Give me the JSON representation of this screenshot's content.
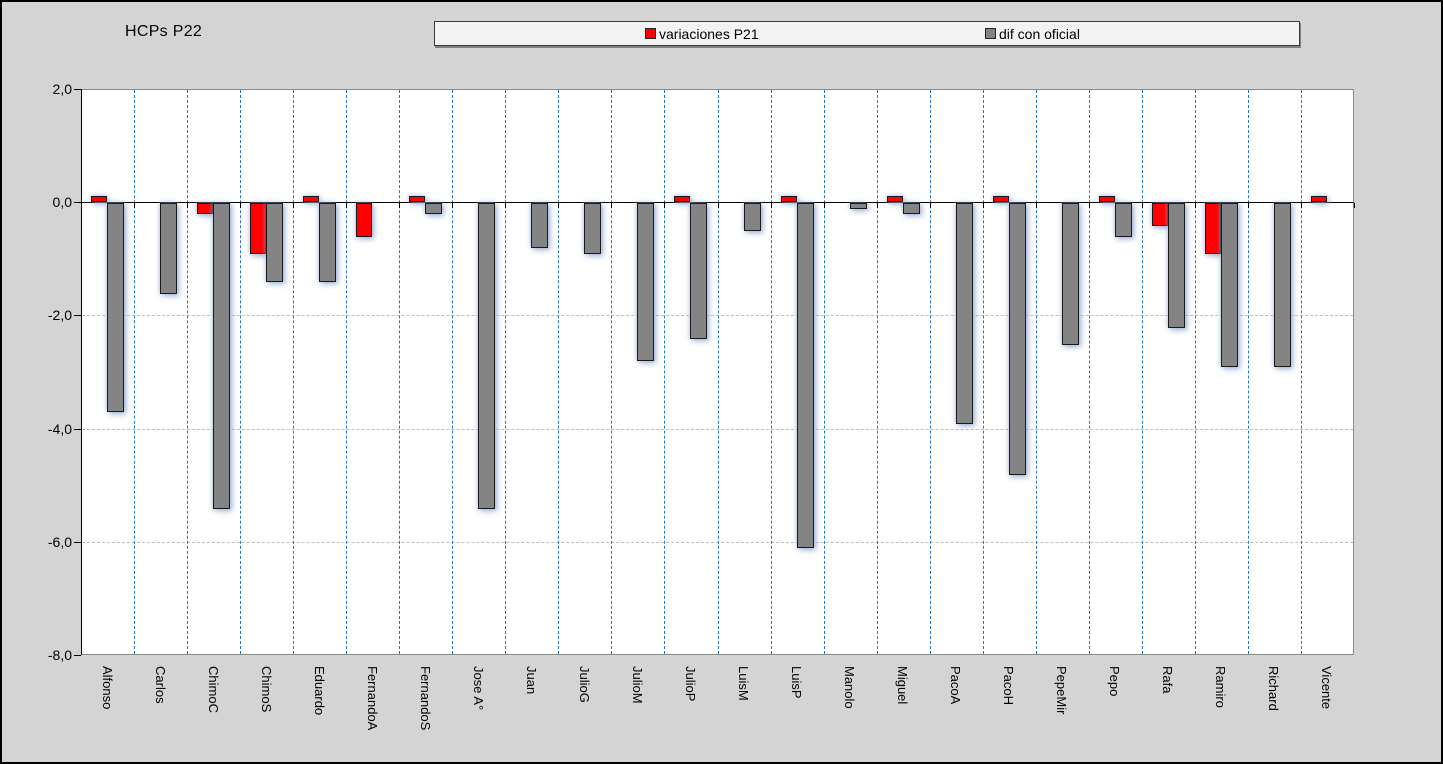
{
  "title": "HCPs P22",
  "legend": {
    "entries": [
      {
        "label": "variaciones P21",
        "color": "#fe0000"
      },
      {
        "label": "dif con oficial",
        "color": "#848484"
      }
    ],
    "position": "top-center",
    "background": "#f3f3f3"
  },
  "colors": {
    "page_background": "#d4d4d4",
    "plot_background": "#ffffff",
    "vertical_grid": "#2277c4",
    "horizontal_grid": "#bdbdbd",
    "axis": "#000000"
  },
  "chart_data": {
    "type": "bar",
    "title": "HCPs P22",
    "categories": [
      "Alfonso",
      "Carlos",
      "ChimoC",
      "ChimoS",
      "Eduardo",
      "FernandoA",
      "FernandoS",
      "Jose A°",
      "Juan",
      "JulioG",
      "JulioM",
      "JulioP",
      "LuisM",
      "LuisP",
      "Manolo",
      "Miguel",
      "PacoA",
      "PacoH",
      "PepeMir",
      "Pepo",
      "Rafa",
      "Ramiro",
      "Richard",
      "Vicente"
    ],
    "series": [
      {
        "name": "variaciones P21",
        "color": "#fe0000",
        "values": [
          0.1,
          0,
          -0.2,
          -0.9,
          0.1,
          -0.6,
          0.1,
          0,
          0,
          0,
          0,
          0.1,
          0,
          0.1,
          0,
          0.1,
          0,
          0.1,
          0,
          0.1,
          -0.4,
          -0.9,
          0,
          0.1
        ]
      },
      {
        "name": "dif con oficial",
        "color": "#848484",
        "values": [
          -3.7,
          -1.6,
          -5.4,
          -1.4,
          -1.4,
          0,
          -0.2,
          -5.4,
          -0.8,
          -0.9,
          -2.8,
          -2.4,
          -0.5,
          -6.1,
          -0.1,
          -0.2,
          -3.9,
          -4.8,
          -2.5,
          -0.6,
          -2.2,
          -2.9,
          -2.9,
          0
        ]
      }
    ],
    "ylim": [
      -8.0,
      2.0
    ],
    "ytick_values": [
      2,
      0,
      -2,
      -4,
      -6,
      -8
    ],
    "ytick_labels": [
      "2,0",
      "0,0",
      "-2,0",
      "-4,0",
      "-6,0",
      "-8,0"
    ],
    "xlabel": "",
    "ylabel": "",
    "grid": {
      "horizontal": "dashed-gray",
      "vertical": "dashed-blue-category-boundaries"
    },
    "legend_position": "top"
  }
}
